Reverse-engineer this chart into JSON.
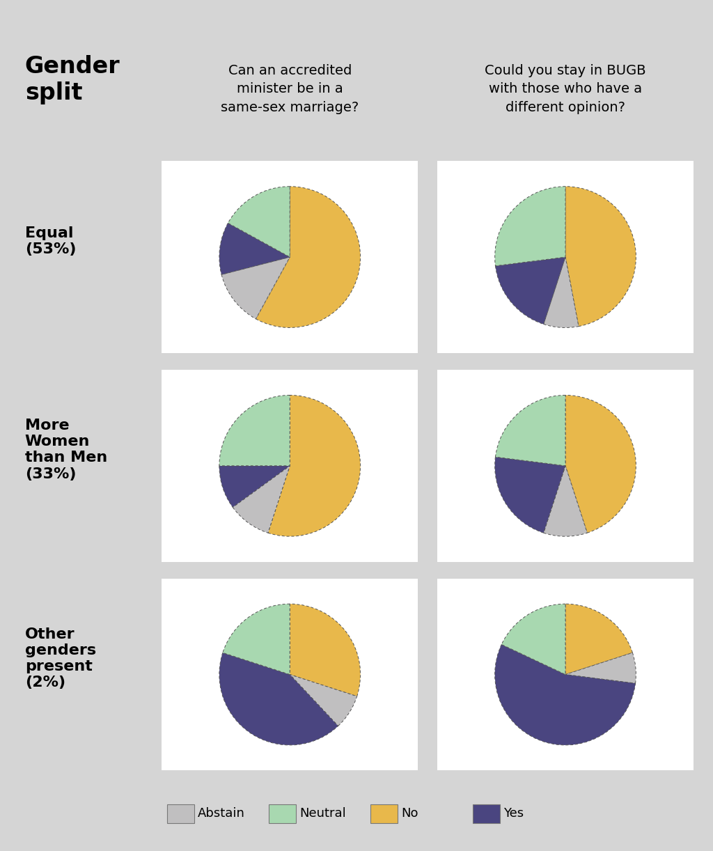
{
  "background_color": "#d5d5d5",
  "pie_background": "#ffffff",
  "colors": {
    "Abstain": "#c0bfc0",
    "Neutral": "#a8d8b0",
    "No": "#e8b84b",
    "Yes": "#4a4580"
  },
  "row_labels": [
    "Equal\n(53%)",
    "More\nWomen\nthan Men\n(33%)",
    "Other\ngenders\npresent\n(2%)"
  ],
  "col_headers": [
    "Can an accredited\nminister be in a\nsame-sex marriage?",
    "Could you stay in BUGB\nwith those who have a\ndifferent opinion?"
  ],
  "header_title": "Gender\nsplit",
  "legend_labels": [
    "Abstain",
    "Neutral",
    "No",
    "Yes"
  ],
  "pies": [
    [
      {
        "No": 58,
        "Neutral": 17,
        "Yes": 12,
        "Abstain": 13
      },
      {
        "No": 47,
        "Neutral": 27,
        "Yes": 18,
        "Abstain": 8
      }
    ],
    [
      {
        "No": 55,
        "Neutral": 25,
        "Yes": 10,
        "Abstain": 10
      },
      {
        "No": 45,
        "Neutral": 23,
        "Yes": 22,
        "Abstain": 10
      }
    ],
    [
      {
        "No": 30,
        "Neutral": 20,
        "Yes": 42,
        "Abstain": 8
      },
      {
        "No": 20,
        "Neutral": 18,
        "Yes": 55,
        "Abstain": 7
      }
    ]
  ],
  "pie_order": [
    "No",
    "Abstain",
    "Yes",
    "Neutral"
  ],
  "startangle": 90
}
